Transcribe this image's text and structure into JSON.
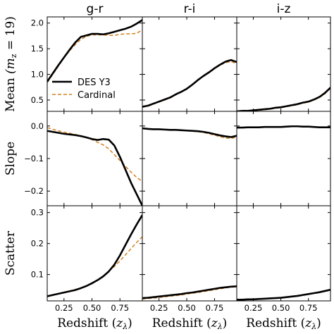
{
  "chart_data": {
    "type": "line",
    "layout": "3x3 grid, shared x per column, shared y per row",
    "columns": [
      "g-r",
      "r-i",
      "i-z"
    ],
    "xlabel": "Redshift",
    "xlabel_sym": "z",
    "xlabel_sub": "λ",
    "xlim": [
      0.1,
      0.95
    ],
    "xticks": [
      0.25,
      0.5,
      0.75
    ],
    "xtick_labels": [
      "0.25",
      "0.50",
      "0.75"
    ],
    "legend": {
      "placement": "lower-left of top-left panel",
      "entries": [
        {
          "name": "DES Y3",
          "style": "solid",
          "color": "#000000"
        },
        {
          "name": "Cardinal",
          "style": "dashed",
          "color": "#d2801f"
        }
      ]
    },
    "series_colors": {
      "DES Y3": "#000000",
      "Cardinal": "#d2801f"
    },
    "x": [
      0.1,
      0.15,
      0.2,
      0.25,
      0.3,
      0.35,
      0.4,
      0.45,
      0.5,
      0.55,
      0.6,
      0.65,
      0.7,
      0.75,
      0.8,
      0.85,
      0.9,
      0.95
    ],
    "rows": [
      {
        "ylabel": "Mean",
        "ylabel_paren": "(m",
        "ylabel_sub": "z",
        "ylabel_eq": "= 19)",
        "ylim": [
          0.28,
          2.12
        ],
        "yticks": [
          0.5,
          1.0,
          1.5,
          2.0
        ],
        "ytick_labels": [
          "0.5",
          "1.0",
          "1.5",
          "2.0"
        ],
        "panels": [
          {
            "DES Y3": [
              0.86,
              1.02,
              1.18,
              1.33,
              1.48,
              1.62,
              1.73,
              1.76,
              1.79,
              1.79,
              1.78,
              1.8,
              1.83,
              1.86,
              1.89,
              1.93,
              1.99,
              2.06
            ],
            "Cardinal": [
              0.84,
              1.0,
              1.16,
              1.32,
              1.46,
              1.58,
              1.68,
              1.74,
              1.77,
              1.77,
              1.77,
              1.76,
              1.76,
              1.78,
              1.79,
              1.79,
              1.8,
              1.87
            ]
          },
          {
            "DES Y3": [
              0.37,
              0.39,
              0.43,
              0.47,
              0.51,
              0.55,
              0.61,
              0.66,
              0.72,
              0.8,
              0.89,
              0.97,
              1.04,
              1.12,
              1.19,
              1.25,
              1.28,
              1.24
            ],
            "Cardinal": [
              0.36,
              0.38,
              0.42,
              0.46,
              0.5,
              0.54,
              0.6,
              0.66,
              0.71,
              0.79,
              0.88,
              0.96,
              1.03,
              1.11,
              1.18,
              1.23,
              1.25,
              1.21
            ]
          },
          {
            "DES Y3": [
              0.28,
              0.29,
              0.29,
              0.3,
              0.31,
              0.32,
              0.33,
              0.35,
              0.36,
              0.38,
              0.4,
              0.42,
              0.45,
              0.47,
              0.51,
              0.56,
              0.64,
              0.74
            ],
            "Cardinal": [
              0.27,
              0.28,
              0.28,
              0.29,
              0.3,
              0.31,
              0.32,
              0.34,
              0.35,
              0.37,
              0.39,
              0.41,
              0.44,
              0.46,
              0.5,
              0.55,
              0.62,
              0.76
            ]
          }
        ]
      },
      {
        "ylabel": "Slope",
        "ylim": [
          -0.245,
          0.045
        ],
        "yticks": [
          -0.2,
          -0.1,
          0.0
        ],
        "ytick_labels": [
          "−0.2",
          "−0.1",
          "0.0"
        ],
        "panels": [
          {
            "DES Y3": [
              -0.015,
              -0.018,
              -0.021,
              -0.024,
              -0.026,
              -0.028,
              -0.031,
              -0.035,
              -0.04,
              -0.043,
              -0.04,
              -0.042,
              -0.06,
              -0.095,
              -0.135,
              -0.175,
              -0.21,
              -0.245
            ],
            "Cardinal": [
              -0.005,
              -0.01,
              -0.015,
              -0.019,
              -0.022,
              -0.026,
              -0.03,
              -0.035,
              -0.042,
              -0.05,
              -0.058,
              -0.07,
              -0.088,
              -0.106,
              -0.124,
              -0.142,
              -0.158,
              -0.17
            ]
          },
          {
            "DES Y3": [
              -0.007,
              -0.009,
              -0.01,
              -0.01,
              -0.011,
              -0.012,
              -0.012,
              -0.013,
              -0.014,
              -0.015,
              -0.016,
              -0.018,
              -0.021,
              -0.025,
              -0.029,
              -0.032,
              -0.034,
              -0.03
            ],
            "Cardinal": [
              -0.008,
              -0.009,
              -0.009,
              -0.01,
              -0.01,
              -0.011,
              -0.012,
              -0.013,
              -0.014,
              -0.016,
              -0.017,
              -0.02,
              -0.024,
              -0.028,
              -0.033,
              -0.037,
              -0.038,
              -0.034
            ]
          },
          {
            "DES Y3": [
              -0.005,
              -0.005,
              -0.004,
              -0.004,
              -0.004,
              -0.003,
              -0.003,
              -0.003,
              -0.003,
              -0.002,
              -0.001,
              -0.001,
              -0.002,
              -0.002,
              -0.003,
              -0.004,
              -0.004,
              -0.004
            ],
            "Cardinal": [
              -0.006,
              -0.006,
              -0.005,
              -0.005,
              -0.005,
              -0.004,
              -0.004,
              -0.004,
              -0.004,
              -0.003,
              -0.002,
              -0.002,
              -0.002,
              -0.003,
              -0.003,
              -0.004,
              -0.005,
              -0.005
            ]
          }
        ]
      },
      {
        "ylabel": "Scatter",
        "ylim": [
          0.015,
          0.322
        ],
        "yticks": [
          0.1,
          0.2,
          0.3
        ],
        "ytick_labels": [
          "0.1",
          "0.2",
          "0.3"
        ],
        "panels": [
          {
            "DES Y3": [
              0.03,
              0.034,
              0.038,
              0.042,
              0.046,
              0.05,
              0.056,
              0.063,
              0.072,
              0.082,
              0.094,
              0.11,
              0.132,
              0.162,
              0.196,
              0.23,
              0.262,
              0.292
            ],
            "Cardinal": [
              0.028,
              0.033,
              0.038,
              0.043,
              0.047,
              0.052,
              0.056,
              0.062,
              0.07,
              0.082,
              0.096,
              0.11,
              0.126,
              0.144,
              0.164,
              0.184,
              0.204,
              0.222
            ]
          },
          {
            "DES Y3": [
              0.024,
              0.025,
              0.027,
              0.029,
              0.031,
              0.033,
              0.035,
              0.037,
              0.04,
              0.042,
              0.045,
              0.048,
              0.051,
              0.054,
              0.057,
              0.059,
              0.061,
              0.062
            ],
            "Cardinal": [
              0.021,
              0.023,
              0.024,
              0.026,
              0.028,
              0.03,
              0.032,
              0.034,
              0.037,
              0.04,
              0.042,
              0.045,
              0.048,
              0.051,
              0.054,
              0.057,
              0.059,
              0.061
            ]
          },
          {
            "DES Y3": [
              0.019,
              0.019,
              0.02,
              0.02,
              0.021,
              0.022,
              0.023,
              0.024,
              0.025,
              0.027,
              0.029,
              0.031,
              0.034,
              0.037,
              0.04,
              0.043,
              0.047,
              0.051
            ],
            "Cardinal": [
              0.018,
              0.018,
              0.019,
              0.019,
              0.02,
              0.021,
              0.022,
              0.023,
              0.024,
              0.026,
              0.028,
              0.03,
              0.033,
              0.036,
              0.039,
              0.042,
              0.046,
              0.05
            ]
          }
        ]
      }
    ]
  }
}
